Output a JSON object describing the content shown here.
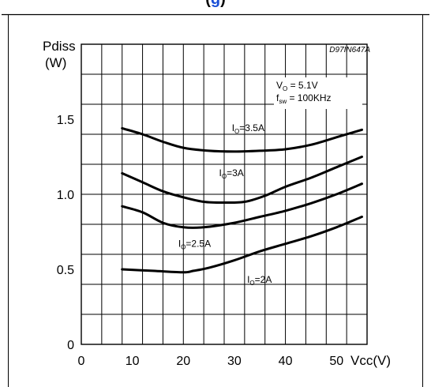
{
  "header": {
    "open_paren": "(",
    "link_fragment": "g",
    "close_paren": ")"
  },
  "chart_data": {
    "type": "line",
    "code": "D97IN647A",
    "ylabel_line1": "Pdiss",
    "ylabel_line2": "(W)",
    "xlabel": "Vcc(V)",
    "xlim": [
      0,
      56
    ],
    "ylim": [
      0,
      2.0
    ],
    "x_tick_labels": [
      "0",
      "10",
      "20",
      "30",
      "40",
      "50"
    ],
    "x_tick_values": [
      0,
      10,
      20,
      30,
      40,
      50
    ],
    "y_tick_labels": [
      "0",
      "0.5",
      "1.0",
      "1.5"
    ],
    "y_tick_values": [
      0,
      0.5,
      1.0,
      1.5
    ],
    "grid": true,
    "conditions": {
      "vo": {
        "main": "V",
        "sub": "O",
        "rest": " = 5.1V"
      },
      "fsw": {
        "main": "f",
        "sub": "sw",
        "rest": " = 100KHz"
      }
    },
    "series": [
      {
        "name": "IO=3.5A",
        "label_main": "I",
        "label_sub": "O",
        "label_rest": "=3.5A",
        "label_at": [
          29.5,
          1.42
        ],
        "x": [
          8,
          12,
          16,
          20,
          25,
          30,
          35,
          40,
          45,
          50,
          55
        ],
        "y": [
          1.44,
          1.4,
          1.35,
          1.31,
          1.29,
          1.285,
          1.29,
          1.3,
          1.33,
          1.38,
          1.43
        ]
      },
      {
        "name": "IO=3A",
        "label_main": "I",
        "label_sub": "O",
        "label_rest": "=3A",
        "label_at": [
          27,
          1.12
        ],
        "x": [
          8,
          12,
          16,
          20,
          24,
          28,
          32,
          36,
          40,
          45,
          50,
          55
        ],
        "y": [
          1.14,
          1.08,
          1.02,
          0.98,
          0.95,
          0.945,
          0.95,
          0.99,
          1.05,
          1.11,
          1.18,
          1.25
        ]
      },
      {
        "name": "IO=2.5A",
        "label_main": "I",
        "label_sub": "O",
        "label_rest": "=2.5A",
        "label_at": [
          19,
          0.65
        ],
        "x": [
          8,
          12,
          16,
          20,
          24,
          30,
          35,
          40,
          45,
          50,
          55
        ],
        "y": [
          0.92,
          0.88,
          0.81,
          0.78,
          0.78,
          0.81,
          0.85,
          0.89,
          0.94,
          1.0,
          1.07
        ]
      },
      {
        "name": "IO=2A",
        "label_main": "I",
        "label_sub": "O",
        "label_rest": "=2A",
        "label_at": [
          32.5,
          0.41
        ],
        "x": [
          8,
          14,
          20,
          22,
          25,
          30,
          35,
          40,
          45,
          50,
          55
        ],
        "y": [
          0.5,
          0.49,
          0.48,
          0.49,
          0.51,
          0.56,
          0.62,
          0.67,
          0.72,
          0.78,
          0.85
        ]
      }
    ]
  }
}
